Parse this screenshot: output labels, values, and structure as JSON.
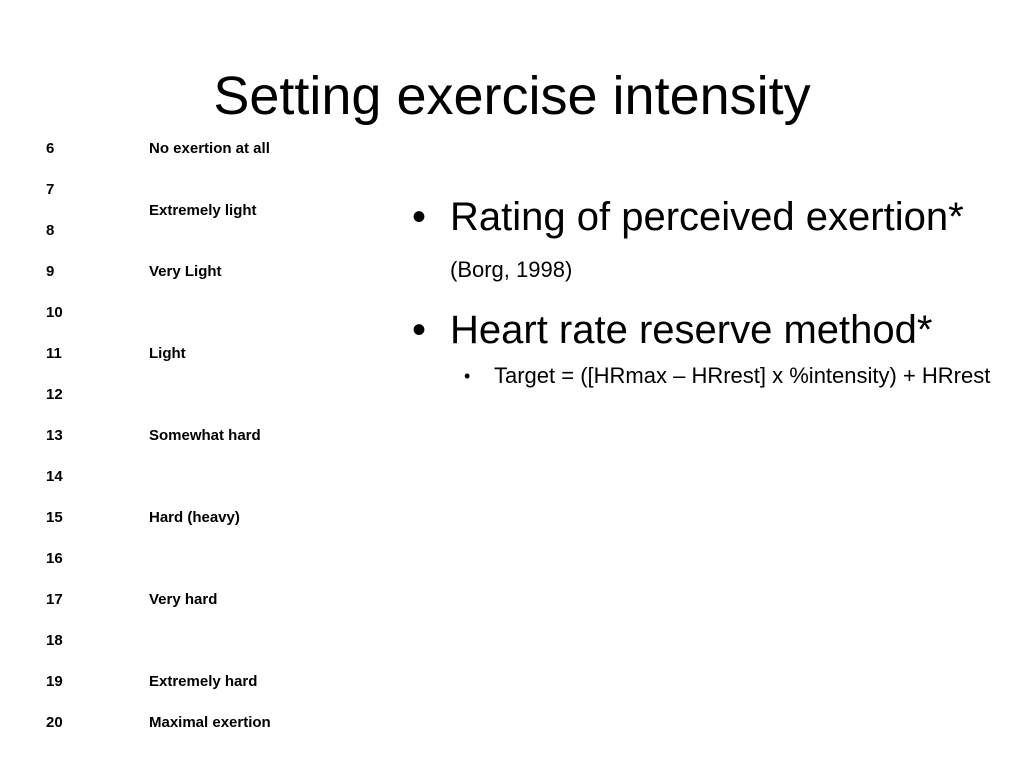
{
  "title": "Setting exercise intensity",
  "borg_scale": [
    {
      "number": "6",
      "label": "No exertion at all"
    },
    {
      "number": "7",
      "label": ""
    },
    {
      "number": "",
      "label": "Extremely light"
    },
    {
      "number": "8",
      "label": ""
    },
    {
      "number": "9",
      "label": "Very Light"
    },
    {
      "number": "10",
      "label": ""
    },
    {
      "number": "11",
      "label": "Light"
    },
    {
      "number": "12",
      "label": ""
    },
    {
      "number": "13",
      "label": "Somewhat hard"
    },
    {
      "number": "14",
      "label": ""
    },
    {
      "number": "15",
      "label": "Hard (heavy)"
    },
    {
      "number": "16",
      "label": ""
    },
    {
      "number": "17",
      "label": "Very hard"
    },
    {
      "number": "18",
      "label": ""
    },
    {
      "number": "19",
      "label": "Extremely hard"
    },
    {
      "number": "20",
      "label": "Maximal exertion"
    }
  ],
  "bullets": [
    {
      "text": "Rating of perceived exertion*",
      "citation": "(Borg, 1998)"
    },
    {
      "text": "Heart rate reserve method*"
    }
  ],
  "sub_bullets": [
    {
      "text": "Target = ([HRmax – HRrest] x %intensity) + HRrest"
    }
  ],
  "bullet_glyph": "•"
}
